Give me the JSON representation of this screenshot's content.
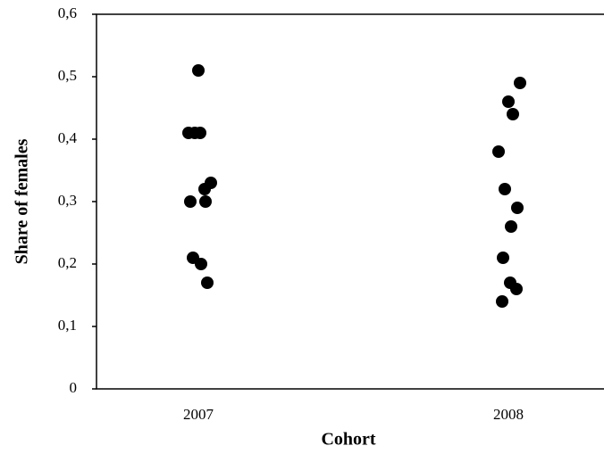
{
  "chart_data": {
    "type": "strip",
    "x_label": "Cohort",
    "y_label": "Share of females",
    "categories": [
      "2007",
      "2008"
    ],
    "values": [
      [
        0.51,
        0.41,
        0.41,
        0.41,
        0.33,
        0.32,
        0.3,
        0.3,
        0.21,
        0.2,
        0.17
      ],
      [
        0.49,
        0.46,
        0.44,
        0.38,
        0.32,
        0.29,
        0.26,
        0.21,
        0.17,
        0.16,
        0.14
      ]
    ],
    "color": "#000000",
    "ylim": [
      0,
      0.6
    ],
    "yticks": [
      0,
      {
        "value": 0.1,
        "label": "0,1"
      },
      {
        "value": 0.2,
        "label": "0,2"
      },
      {
        "value": 0.3,
        "label": "0,3"
      },
      {
        "value": 0.4,
        "label": "0,4"
      },
      {
        "value": 0.5,
        "label": "0,5"
      },
      {
        "value": 0.6,
        "label": "0,6"
      }
    ],
    "grid": false
  }
}
